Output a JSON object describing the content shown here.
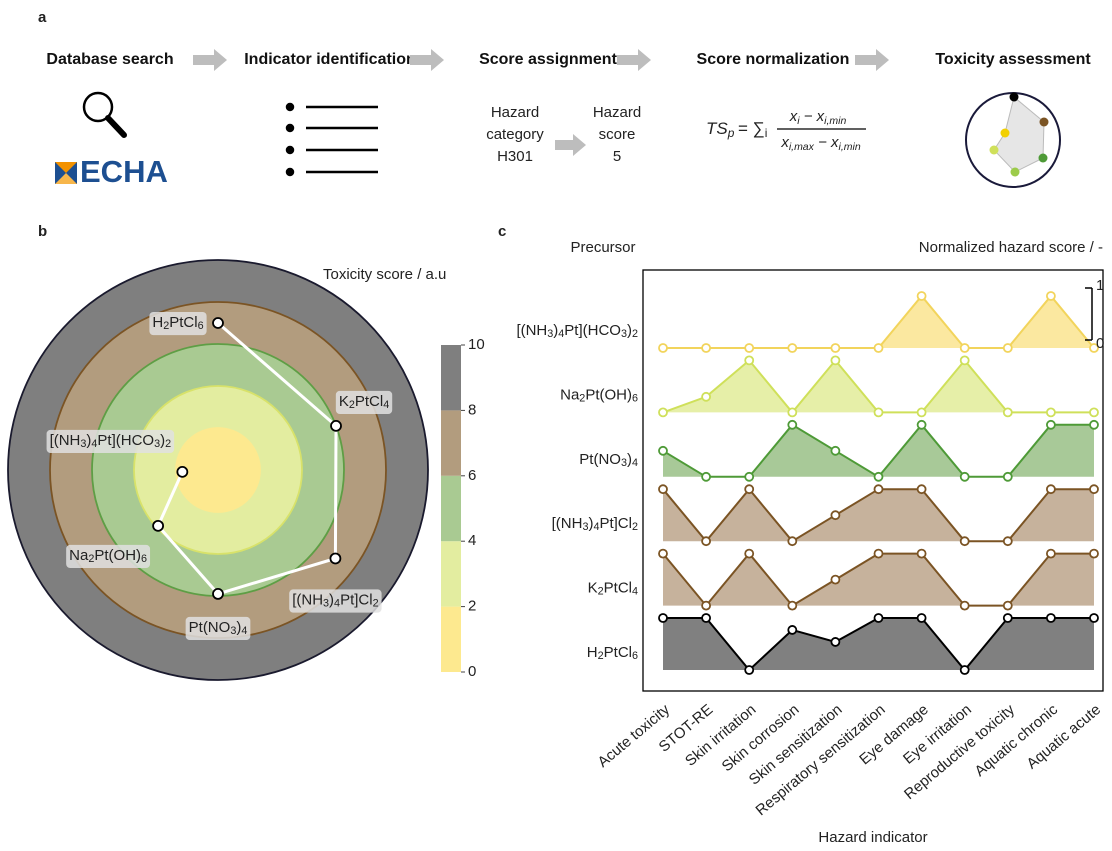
{
  "panel_labels": [
    "a",
    "b",
    "c"
  ],
  "workflow": {
    "steps": [
      "Database search",
      "Indicator identification",
      "Score assignment",
      "Score normalization",
      "Toxicity assessment"
    ],
    "source": "ECHA",
    "hazard_category": [
      "Hazard",
      "category",
      "H301"
    ],
    "hazard_score": [
      "Hazard",
      "score",
      "5"
    ],
    "formula": {
      "lhs": [
        "TS",
        "p"
      ],
      "sum": [
        " = ∑",
        "i"
      ],
      "numerator": [
        "x",
        "i",
        " − x",
        "i,min"
      ],
      "denominator": [
        "x",
        "i,max",
        " − x",
        "i,min"
      ]
    }
  },
  "chart_data": [
    {
      "type": "radar",
      "title": "Toxicity score / a.u",
      "categories": [
        "H2PtCl6",
        "K2PtCl4",
        "[(NH3)4Pt]Cl2",
        "Pt(NO3)4",
        "Na2Pt(OH)6",
        "[(NH3)4Pt](HCO3)2"
      ],
      "values": [
        7.0,
        6.0,
        7.0,
        5.9,
        3.9,
        1.7
      ],
      "color": "#ffffff",
      "ylim": [
        0,
        10
      ],
      "yticks": [
        0,
        2,
        4,
        6,
        8,
        10
      ],
      "colors": [
        "#fde98f",
        "#e3eda0",
        "#a9ca92",
        "#b29c7e",
        "#7f7f7f"
      ],
      "edge_colors": [
        "#fde98f",
        "#d8e26a",
        "#5e9e45",
        "#7b5424",
        "#1a1a2e"
      ]
    },
    {
      "type": "line",
      "title": "Normalized hazard score / -",
      "row_title": "Precursor",
      "xlabel": "Hazard indicator",
      "categories": [
        "Acute toxicity",
        "STOT-RE",
        "Skin irritation",
        "Skin corrosion",
        "Skin sensitization",
        "Respiratory sensitization",
        "Eye damage",
        "Eye irritation",
        "Reproductive toxicity",
        "Aquatic chronic",
        "Aquatic acute"
      ],
      "ylim": [
        0,
        1
      ],
      "yticks": [
        0,
        1
      ],
      "series": [
        {
          "name": "[(NH3)4Pt](HCO3)2",
          "color": "#f2d45c",
          "fill": "#fbe8a0",
          "values": [
            0,
            0,
            0,
            0,
            0,
            0,
            1,
            0,
            0,
            1,
            0
          ]
        },
        {
          "name": "Na2Pt(OH)6",
          "color": "#cfe05a",
          "fill": "#e6efa8",
          "values": [
            0,
            0.3,
            1,
            0,
            1,
            0,
            0,
            1,
            0,
            0,
            0
          ]
        },
        {
          "name": "Pt(NO3)4",
          "color": "#4e9a37",
          "fill": "#a8c998",
          "values": [
            0.5,
            0,
            0,
            1,
            0.5,
            0,
            1,
            0,
            0,
            1,
            1
          ]
        },
        {
          "name": "[(NH3)4Pt]Cl2",
          "color": "#7b5424",
          "fill": "#c6b29c",
          "values": [
            1,
            0,
            1,
            0,
            0.5,
            1,
            1,
            0,
            0,
            1,
            1
          ]
        },
        {
          "name": "K2PtCl4",
          "color": "#7b5424",
          "fill": "#c6b29c",
          "values": [
            1,
            0,
            1,
            0,
            0.5,
            1,
            1,
            0,
            0,
            1,
            1
          ]
        },
        {
          "name": "H2PtCl6",
          "color": "#000000",
          "fill": "#808080",
          "values": [
            1,
            1,
            0,
            0.77,
            0.54,
            1,
            1,
            0,
            1,
            1,
            1
          ]
        }
      ]
    }
  ]
}
